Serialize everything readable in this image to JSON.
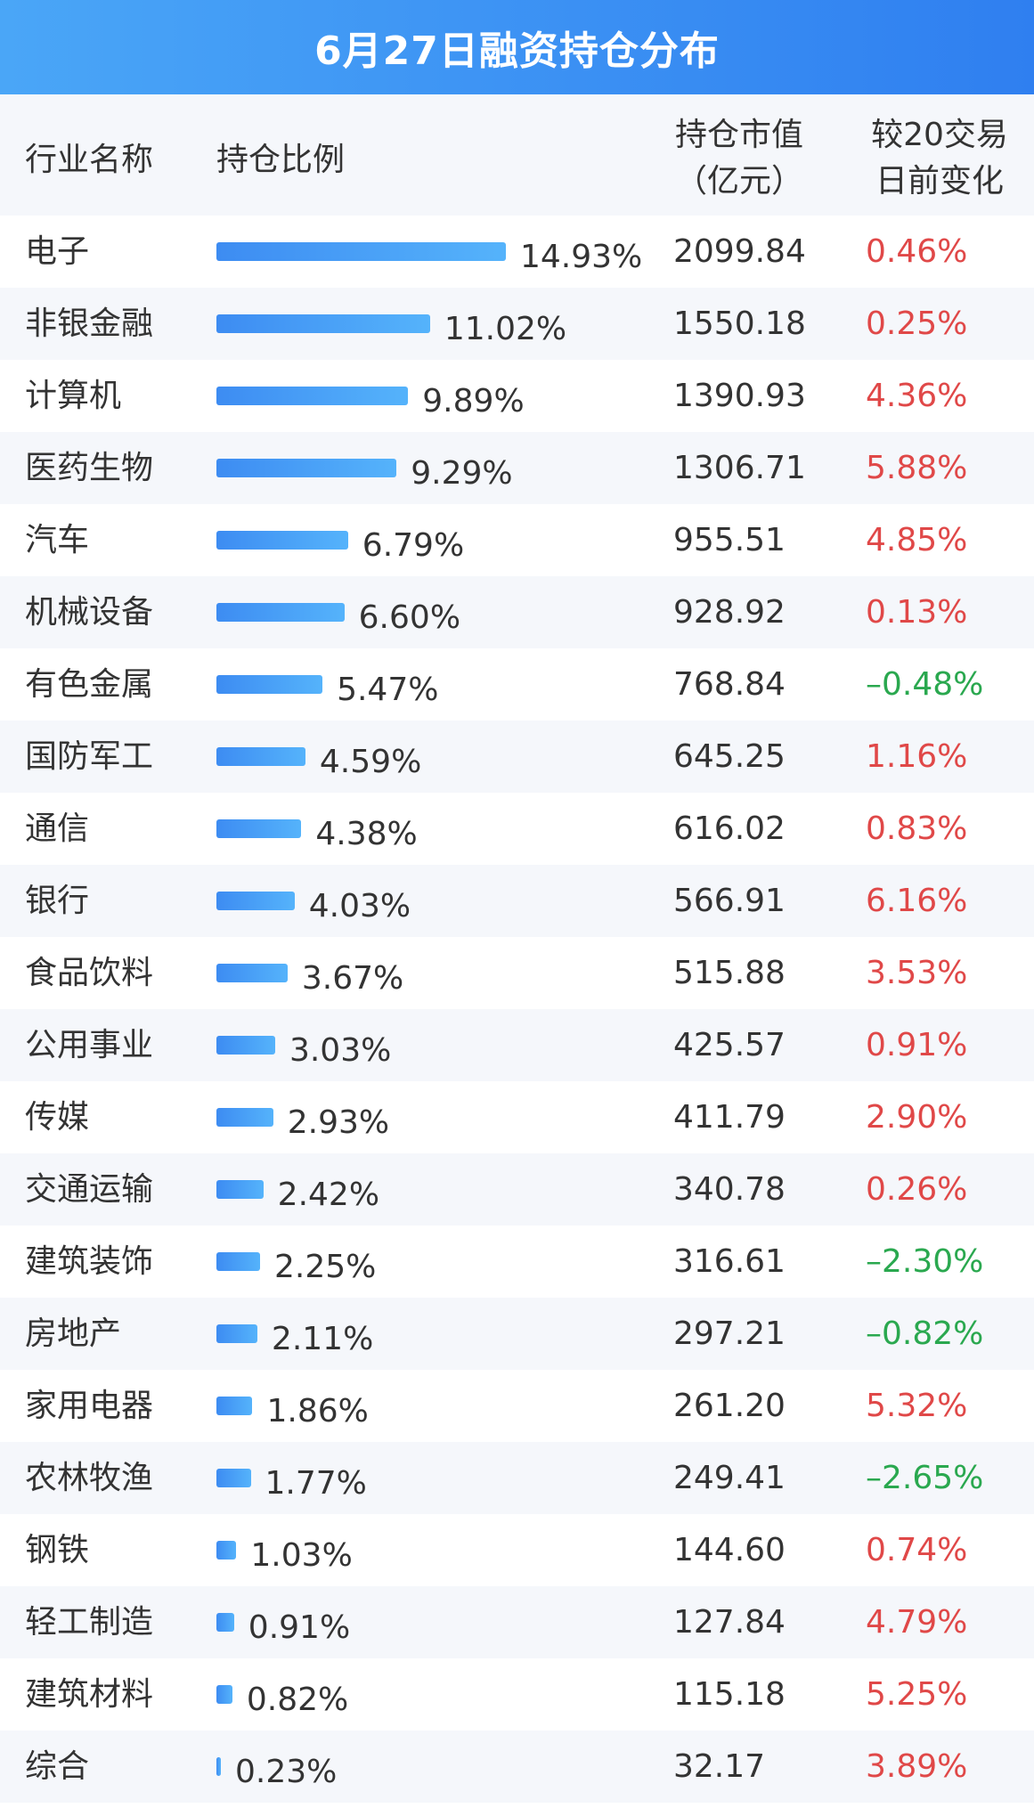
{
  "title": "6月27日融资持仓分布",
  "headers": {
    "name": "行业名称",
    "ratio": "持仓比例",
    "value_line1": "持仓市值",
    "value_line2": "（亿元）",
    "change_line1": "较20交易",
    "change_line2": "日前变化"
  },
  "colors": {
    "title_bg": "#2f7ff0",
    "bar": "#3d8cf2",
    "positive": "#e04848",
    "negative": "#2aa84f",
    "stripe": "#f5f7fb"
  },
  "chart_data": {
    "type": "bar",
    "title": "6月27日融资持仓分布",
    "categories": [
      "电子",
      "非银金融",
      "计算机",
      "医药生物",
      "汽车",
      "机械设备",
      "有色金属",
      "国防军工",
      "通信",
      "银行",
      "食品饮料",
      "公用事业",
      "传媒",
      "交通运输",
      "建筑装饰",
      "房地产",
      "家用电器",
      "农林牧渔",
      "钢铁",
      "轻工制造",
      "建筑材料",
      "综合"
    ],
    "ratio": [
      14.93,
      11.02,
      9.89,
      9.29,
      6.79,
      6.6,
      5.47,
      4.59,
      4.38,
      4.03,
      3.67,
      3.03,
      2.93,
      2.42,
      2.25,
      2.11,
      1.86,
      1.77,
      1.03,
      0.91,
      0.82,
      0.23
    ],
    "ratio_labels": [
      "14.93%",
      "11.02%",
      "9.89%",
      "9.29%",
      "6.79%",
      "6.60%",
      "5.47%",
      "4.59%",
      "4.38%",
      "4.03%",
      "3.67%",
      "3.03%",
      "2.93%",
      "2.42%",
      "2.25%",
      "2.11%",
      "1.86%",
      "1.77%",
      "1.03%",
      "0.91%",
      "0.82%",
      "0.23%"
    ],
    "value": [
      "2099.84",
      "1550.18",
      "1390.93",
      "1306.71",
      "955.51",
      "928.92",
      "768.84",
      "645.25",
      "616.02",
      "566.91",
      "515.88",
      "425.57",
      "411.79",
      "340.78",
      "316.61",
      "297.21",
      "261.20",
      "249.41",
      "144.60",
      "127.84",
      "115.18",
      "32.17"
    ],
    "change": [
      "0.46%",
      "0.25%",
      "4.36%",
      "5.88%",
      "4.85%",
      "0.13%",
      "–0.48%",
      "1.16%",
      "0.83%",
      "6.16%",
      "3.53%",
      "0.91%",
      "2.90%",
      "0.26%",
      "–2.30%",
      "–0.82%",
      "5.32%",
      "–2.65%",
      "0.74%",
      "4.79%",
      "5.25%",
      "3.89%"
    ],
    "change_sign": [
      "pos",
      "pos",
      "pos",
      "pos",
      "pos",
      "pos",
      "neg",
      "pos",
      "pos",
      "pos",
      "pos",
      "pos",
      "pos",
      "pos",
      "neg",
      "neg",
      "pos",
      "neg",
      "pos",
      "pos",
      "pos",
      "pos"
    ]
  }
}
